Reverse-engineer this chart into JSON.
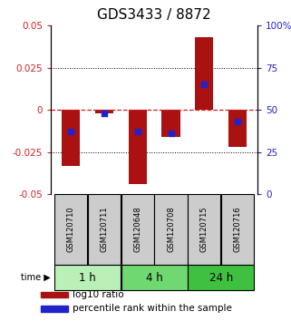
{
  "title": "GDS3433 / 8872",
  "samples": [
    "GSM120710",
    "GSM120711",
    "GSM120648",
    "GSM120708",
    "GSM120715",
    "GSM120716"
  ],
  "time_groups": [
    {
      "label": "1 h",
      "indices": [
        0,
        1
      ],
      "color": "#b8f0b8"
    },
    {
      "label": "4 h",
      "indices": [
        2,
        3
      ],
      "color": "#70d870"
    },
    {
      "label": "24 h",
      "indices": [
        4,
        5
      ],
      "color": "#40c040"
    }
  ],
  "log10_ratio": [
    -0.033,
    -0.002,
    -0.044,
    -0.016,
    0.043,
    -0.022
  ],
  "percentile_rank": [
    37,
    48,
    37,
    36,
    65,
    43
  ],
  "ylim_left": [
    -0.05,
    0.05
  ],
  "yticks_left": [
    -0.05,
    -0.025,
    0,
    0.025,
    0.05
  ],
  "ylim_right": [
    0,
    100
  ],
  "yticks_right": [
    0,
    25,
    50,
    75,
    100
  ],
  "ytick_labels_left": [
    "-0.05",
    "-0.025",
    "0",
    "0.025",
    "0.05"
  ],
  "ytick_labels_right": [
    "0",
    "25",
    "50",
    "75",
    "100%"
  ],
  "bar_color": "#aa1111",
  "dot_color": "#2222cc",
  "hline_color": "#cc2222",
  "grid_color": "#000000",
  "sample_box_color": "#cccccc",
  "legend_entries": [
    "log10 ratio",
    "percentile rank within the sample"
  ],
  "title_fontsize": 11,
  "tick_fontsize": 7.5,
  "sample_fontsize": 6.0,
  "time_fontsize": 8.5,
  "legend_fontsize": 7.5
}
